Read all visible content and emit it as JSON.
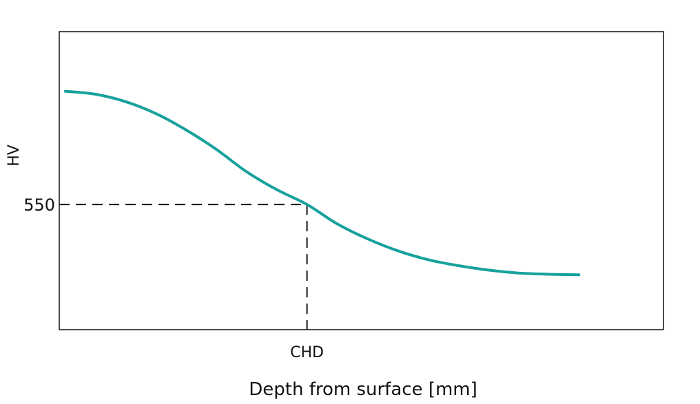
{
  "chart_data": {
    "type": "line",
    "xlabel": "Depth from surface [mm]",
    "ylabel": "HV",
    "grid": false,
    "legend": "none",
    "xlim": [
      0,
      1
    ],
    "ylim": [
      0,
      1
    ],
    "x_tick_labels": [
      {
        "x": 0.41,
        "label": "CHD"
      }
    ],
    "y_tick_labels": [
      {
        "y": 0.42,
        "label": "550"
      }
    ],
    "reference_point": {
      "x": 0.41,
      "y": 0.42,
      "xlabel": "CHD",
      "ylabel": "550"
    },
    "series": [
      {
        "color": "#17a19c",
        "x": [
          0.01,
          0.06,
          0.11,
          0.16,
          0.21,
          0.26,
          0.31,
          0.36,
          0.41,
          0.46,
          0.51,
          0.56,
          0.61,
          0.66,
          0.71,
          0.76,
          0.81,
          0.86
        ],
        "y": [
          0.8,
          0.79,
          0.765,
          0.725,
          0.67,
          0.605,
          0.53,
          0.47,
          0.42,
          0.355,
          0.305,
          0.265,
          0.235,
          0.215,
          0.2,
          0.19,
          0.186,
          0.184
        ]
      }
    ]
  }
}
